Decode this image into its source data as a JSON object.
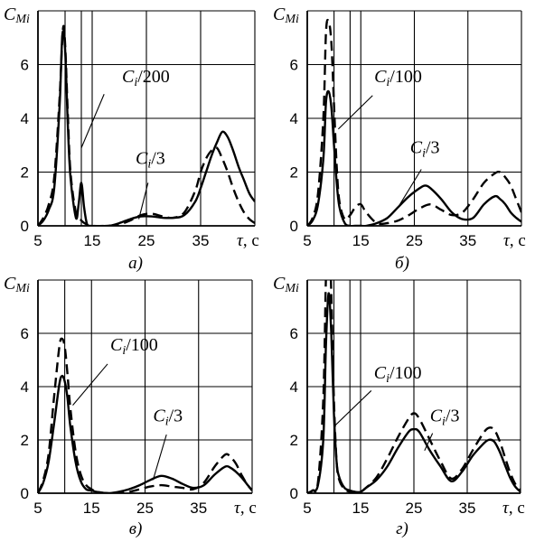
{
  "chart_data": [
    {
      "type": "line",
      "panel_label": "а)",
      "ylabel_main": "C",
      "ylabel_sub": "Mi",
      "xlabel_main": "τ",
      "xlabel_unit": ", с",
      "xlim": [
        5,
        45
      ],
      "ylim": [
        0,
        8
      ],
      "xticks": [
        5,
        15,
        25,
        35
      ],
      "xtick_labels": [
        "5",
        "15",
        "25",
        "35"
      ],
      "yticks": [
        0,
        2,
        4,
        6
      ],
      "ytick_labels": [
        "0",
        "2",
        "4",
        "6"
      ],
      "xgrid": [
        5,
        10,
        13,
        15,
        25,
        35,
        45
      ],
      "ygrid": [
        0,
        2,
        4,
        6,
        8
      ],
      "annotations": [
        {
          "main": "C",
          "sub": "i",
          "rest": "/200",
          "text_x": 20.5,
          "text_y": 5.35,
          "line": [
            [
              17.2,
              4.9
            ],
            [
              13.0,
              2.9
            ]
          ]
        },
        {
          "main": "C",
          "sub": "i",
          "rest": "/3",
          "text_x": 23.0,
          "text_y": 2.3,
          "line": [
            [
              25.3,
              1.6
            ],
            [
              23.6,
              0.25
            ]
          ]
        }
      ],
      "series": [
        {
          "style": "solid",
          "x": [
            5,
            6,
            7,
            8,
            9,
            9.5,
            10,
            10.5,
            11,
            12,
            12.5,
            13,
            13.5,
            14,
            14.5,
            18,
            20,
            22,
            24,
            26,
            28,
            30,
            32,
            34,
            35,
            36,
            37,
            38,
            39,
            40,
            41,
            42,
            43,
            44,
            45
          ],
          "y": [
            0,
            0.2,
            0.6,
            1.4,
            4.5,
            7.1,
            6.6,
            3.8,
            1.8,
            0.3,
            0.8,
            1.6,
            0.7,
            0.1,
            0,
            0,
            0.1,
            0.25,
            0.35,
            0.35,
            0.3,
            0.3,
            0.4,
            0.9,
            1.4,
            2.0,
            2.6,
            3.1,
            3.5,
            3.3,
            2.8,
            2.2,
            1.7,
            1.2,
            0.9
          ]
        },
        {
          "style": "dashed",
          "x": [
            5,
            6,
            7,
            8,
            9,
            9.6,
            10,
            10.5,
            11,
            12,
            13,
            14,
            15,
            18,
            20,
            22,
            24,
            26,
            28,
            30,
            32,
            34,
            35,
            36,
            37,
            38,
            39,
            40,
            41,
            42,
            43,
            44,
            45
          ],
          "y": [
            0,
            0.3,
            0.8,
            1.8,
            4.8,
            7.3,
            6.8,
            4.2,
            2.0,
            0.5,
            0.2,
            0.05,
            0,
            0,
            0.05,
            0.2,
            0.4,
            0.45,
            0.35,
            0.3,
            0.5,
            1.3,
            2.0,
            2.5,
            2.8,
            2.9,
            2.5,
            2.0,
            1.4,
            0.9,
            0.5,
            0.25,
            0.1
          ]
        }
      ]
    },
    {
      "type": "line",
      "panel_label": "б)",
      "ylabel_main": "C",
      "ylabel_sub": "Mi",
      "xlabel_main": "τ",
      "xlabel_unit": ", с",
      "xlim": [
        5,
        45
      ],
      "ylim": [
        0,
        8
      ],
      "xticks": [
        5,
        15,
        25,
        35
      ],
      "xtick_labels": [
        "5",
        "15",
        "25",
        "35"
      ],
      "yticks": [
        0,
        2,
        4,
        6
      ],
      "ytick_labels": [
        "0",
        "2",
        "4",
        "6"
      ],
      "xgrid": [
        5,
        10,
        13,
        15,
        25,
        35,
        45
      ],
      "ygrid": [
        0,
        2,
        4,
        6,
        8
      ],
      "annotations": [
        {
          "main": "C",
          "sub": "i",
          "rest": "/100",
          "text_x": 17.5,
          "text_y": 5.35,
          "line": [
            [
              17.2,
              4.85
            ],
            [
              10.8,
              3.6
            ]
          ]
        },
        {
          "main": "C",
          "sub": "i",
          "rest": "/3",
          "text_x": 24.2,
          "text_y": 2.7,
          "line": [
            [
              26.3,
              2.1
            ],
            [
              22.0,
              0.7
            ]
          ]
        }
      ],
      "series": [
        {
          "style": "solid",
          "x": [
            5,
            6,
            7,
            8,
            8.5,
            9,
            9.5,
            10,
            10.5,
            11,
            12,
            13,
            14,
            15,
            16,
            18,
            20,
            22,
            24,
            26,
            27,
            28,
            30,
            32,
            34,
            36,
            38,
            40,
            41,
            42,
            43,
            44,
            45
          ],
          "y": [
            0,
            0.2,
            0.8,
            2.5,
            4.6,
            5.0,
            4.4,
            3.0,
            1.6,
            0.7,
            0.1,
            0,
            0,
            0,
            0,
            0.1,
            0.3,
            0.7,
            1.1,
            1.4,
            1.5,
            1.4,
            1.0,
            0.5,
            0.25,
            0.3,
            0.8,
            1.1,
            1.0,
            0.8,
            0.5,
            0.3,
            0.15
          ]
        },
        {
          "style": "dashed",
          "x": [
            5,
            6,
            7,
            8,
            8.5,
            9,
            9.5,
            10,
            10.5,
            11,
            12,
            13,
            14,
            15,
            16,
            18,
            20,
            22,
            24,
            26,
            28,
            30,
            32,
            34,
            36,
            38,
            40,
            41,
            42,
            43,
            44,
            45
          ],
          "y": [
            0,
            0.3,
            1.2,
            4.0,
            7.2,
            7.6,
            6.8,
            4.5,
            2.2,
            0.9,
            0.25,
            0.4,
            0.7,
            0.8,
            0.5,
            0.1,
            0.1,
            0.2,
            0.4,
            0.65,
            0.8,
            0.6,
            0.4,
            0.5,
            1.0,
            1.6,
            1.95,
            2.0,
            1.8,
            1.5,
            1.0,
            0.5
          ]
        }
      ]
    },
    {
      "type": "line",
      "panel_label": "в)",
      "ylabel_main": "C",
      "ylabel_sub": "Mi",
      "xlabel_main": "τ",
      "xlabel_unit": ", с",
      "xlim": [
        5,
        45
      ],
      "ylim": [
        0,
        8
      ],
      "xticks": [
        5,
        15,
        25,
        35
      ],
      "xtick_labels": [
        "5",
        "15",
        "25",
        "35"
      ],
      "yticks": [
        0,
        2,
        4,
        6
      ],
      "ytick_labels": [
        "0",
        "2",
        "4",
        "6"
      ],
      "xgrid": [
        5,
        10,
        15,
        25,
        35,
        45
      ],
      "ygrid": [
        0,
        2,
        4,
        6,
        8
      ],
      "annotations": [
        {
          "main": "C",
          "sub": "i",
          "rest": "/100",
          "text_x": 18.5,
          "text_y": 5.35,
          "line": [
            [
              18.0,
              4.85
            ],
            [
              11.5,
              3.3
            ]
          ]
        },
        {
          "main": "C",
          "sub": "i",
          "rest": "/3",
          "text_x": 26.5,
          "text_y": 2.7,
          "line": [
            [
              29.0,
              2.2
            ],
            [
              26.5,
              0.5
            ]
          ]
        }
      ],
      "series": [
        {
          "style": "solid",
          "x": [
            5,
            6,
            7,
            8,
            9,
            9.5,
            10,
            10.5,
            11,
            12,
            13,
            14,
            15,
            16,
            18,
            20,
            22,
            24,
            26,
            28,
            30,
            32,
            34,
            36,
            38,
            40,
            41,
            42,
            43,
            44,
            45
          ],
          "y": [
            0,
            0.4,
            1.2,
            2.6,
            4.1,
            4.4,
            4.2,
            3.6,
            2.6,
            1.2,
            0.45,
            0.15,
            0.1,
            0.05,
            0,
            0.05,
            0.15,
            0.3,
            0.5,
            0.65,
            0.55,
            0.35,
            0.2,
            0.3,
            0.7,
            1.0,
            0.95,
            0.8,
            0.6,
            0.35,
            0.1
          ]
        },
        {
          "style": "dashed",
          "x": [
            5,
            6,
            7,
            8,
            9,
            9.5,
            10,
            10.5,
            11,
            12,
            13,
            14,
            15,
            16,
            18,
            20,
            22,
            24,
            26,
            28,
            30,
            32,
            34,
            36,
            38,
            40,
            41,
            42,
            43,
            44,
            45
          ],
          "y": [
            0,
            0.5,
            1.5,
            3.6,
            5.5,
            5.8,
            5.5,
            4.5,
            3.3,
            1.6,
            0.7,
            0.3,
            0.15,
            0.05,
            0,
            0,
            0.05,
            0.15,
            0.25,
            0.3,
            0.25,
            0.2,
            0.15,
            0.4,
            1.0,
            1.45,
            1.35,
            1.1,
            0.7,
            0.35,
            0.1
          ]
        }
      ]
    },
    {
      "type": "line",
      "panel_label": "г)",
      "ylabel_main": "C",
      "ylabel_sub": "Mi",
      "xlabel_main": "τ",
      "xlabel_unit": ", с",
      "xlim": [
        5,
        45
      ],
      "ylim": [
        0,
        8
      ],
      "xticks": [
        5,
        15,
        25,
        35
      ],
      "xtick_labels": [
        "5",
        "15",
        "25",
        "35"
      ],
      "yticks": [
        0,
        2,
        4,
        6
      ],
      "ytick_labels": [
        "0",
        "2",
        "4",
        "6"
      ],
      "xgrid": [
        5,
        10,
        13,
        15,
        25,
        35,
        45
      ],
      "ygrid": [
        0,
        2,
        4,
        6,
        8
      ],
      "annotations": [
        {
          "main": "C",
          "sub": "i",
          "rest": "/100",
          "text_x": 17.5,
          "text_y": 4.3,
          "line": [
            [
              17.0,
              3.85
            ],
            [
              10.0,
              2.5
            ]
          ]
        },
        {
          "main": "C",
          "sub": "i",
          "rest": "/3",
          "text_x": 28.0,
          "text_y": 2.7,
          "line": [
            [
              28.5,
              2.25
            ],
            [
              27.0,
              1.6
            ]
          ]
        }
      ],
      "series": [
        {
          "style": "solid",
          "x": [
            5,
            6,
            7,
            8,
            8.5,
            9,
            9.5,
            10,
            10.5,
            11,
            12,
            13,
            14,
            15,
            16,
            18,
            20,
            22,
            24,
            25,
            26,
            28,
            30,
            32,
            34,
            36,
            38,
            39,
            40,
            41,
            42,
            43,
            44,
            45
          ],
          "y": [
            0,
            0.1,
            0.3,
            2.0,
            5.5,
            7.5,
            6.0,
            3.0,
            1.2,
            0.6,
            0.2,
            0.1,
            0.05,
            0.05,
            0.2,
            0.5,
            1.0,
            1.7,
            2.3,
            2.4,
            2.3,
            1.6,
            1.0,
            0.45,
            0.8,
            1.4,
            1.85,
            2.0,
            1.95,
            1.6,
            1.1,
            0.6,
            0.25,
            0.05
          ]
        },
        {
          "style": "dashed",
          "x": [
            5,
            6,
            7,
            8,
            8.5,
            9,
            9.5,
            10,
            10.5,
            11,
            12,
            13,
            14,
            15,
            16,
            18,
            20,
            22,
            24,
            25,
            26,
            28,
            30,
            32,
            34,
            36,
            38,
            39,
            40,
            41,
            42,
            43,
            44,
            45
          ],
          "y": [
            0,
            0.1,
            0.4,
            3.5,
            8.0,
            10.2,
            7.5,
            3.5,
            1.2,
            0.5,
            0.15,
            0.05,
            0,
            0.05,
            0.2,
            0.6,
            1.3,
            2.1,
            2.8,
            3.0,
            2.8,
            2.0,
            1.2,
            0.55,
            0.9,
            1.6,
            2.25,
            2.45,
            2.4,
            2.0,
            1.4,
            0.8,
            0.35,
            0.1
          ]
        }
      ]
    }
  ]
}
